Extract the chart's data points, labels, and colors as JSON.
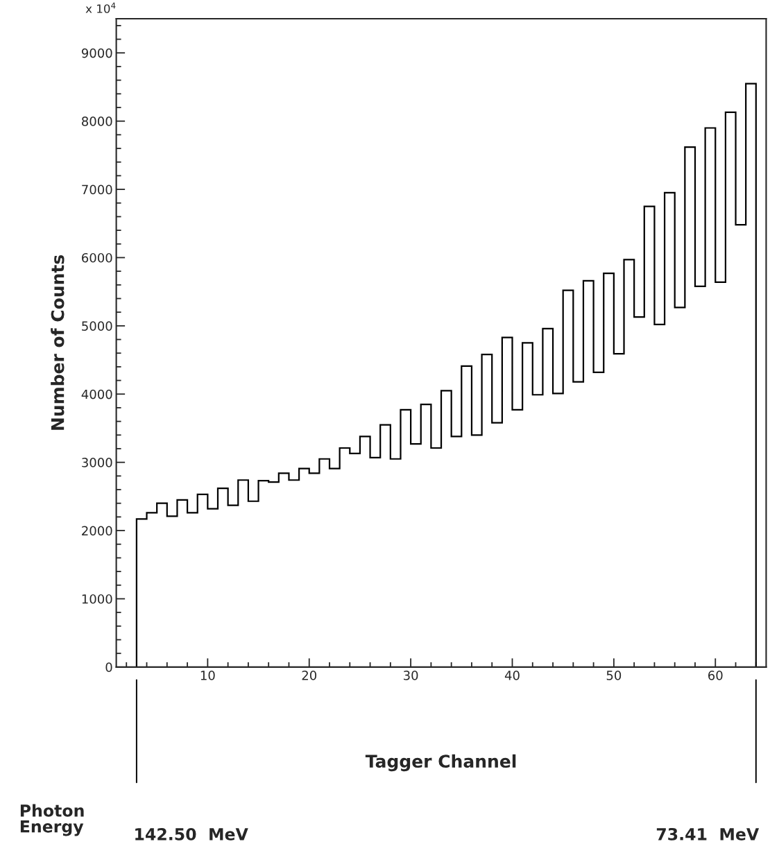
{
  "chart_data": {
    "type": "histogram",
    "xlabel": "Tagger Channel",
    "ylabel": "Number of Counts",
    "bins": [
      3,
      4,
      5,
      6,
      7,
      8,
      9,
      10,
      11,
      12,
      13,
      14,
      15,
      16,
      17,
      18,
      19,
      20,
      21,
      22,
      23,
      24,
      25,
      26,
      27,
      28,
      29,
      30,
      31,
      32,
      33,
      34,
      35,
      36,
      37,
      38,
      39,
      40,
      41,
      42,
      43,
      44,
      45,
      46,
      47,
      48,
      49,
      50,
      51,
      52,
      53,
      54,
      55,
      56,
      57,
      58,
      59,
      60,
      61,
      62,
      63,
      64
    ],
    "values": [
      2170,
      2260,
      2400,
      2210,
      2450,
      2260,
      2530,
      2320,
      2620,
      2370,
      2740,
      2430,
      2730,
      2710,
      2840,
      2740,
      2910,
      2840,
      3050,
      2910,
      3210,
      3130,
      3380,
      3070,
      3550,
      3050,
      3770,
      3270,
      3850,
      3210,
      4050,
      3380,
      4410,
      3400,
      4580,
      3580,
      4830,
      3770,
      4750,
      3990,
      4960,
      4010,
      5520,
      4180,
      5660,
      4320,
      5770,
      4590,
      5970,
      5130,
      6750,
      5020,
      6950,
      5270,
      7620,
      5580,
      7900,
      5640,
      8130,
      6480,
      8550
    ],
    "color": "#000000",
    "xlim": [
      1,
      65
    ],
    "ylim": [
      0,
      9500
    ],
    "xticks": [
      10,
      20,
      30,
      40,
      50,
      60
    ],
    "yticks": [
      0,
      1000,
      2000,
      3000,
      4000,
      5000,
      6000,
      7000,
      8000,
      9000
    ],
    "grid": false,
    "annotations": [
      "x 10$^{4}$",
      "Photon\nEnergy",
      "142.50  MeV",
      "73.41  MeV"
    ]
  }
}
